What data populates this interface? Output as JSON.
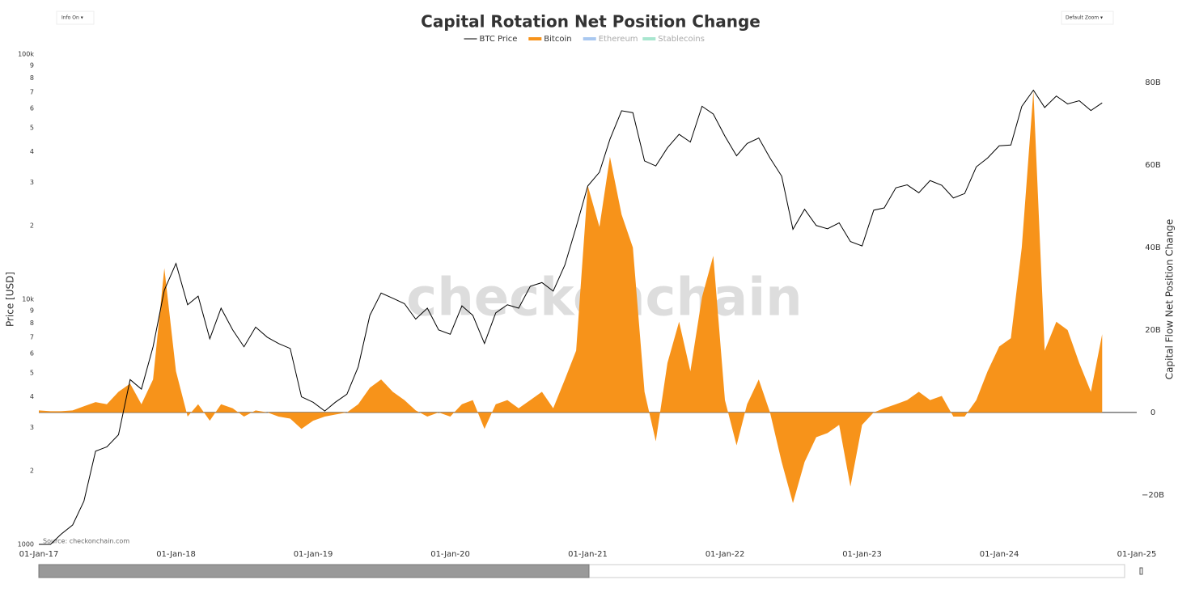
{
  "ui": {
    "info_toggle": "Info On ▾",
    "zoom_menu": "Default Zoom ▾",
    "watermark": "checkonchain",
    "source": "Source: checkonchain.com"
  },
  "chart_data": {
    "type": "dual_axis_area_line",
    "title": "Capital Rotation Net Position Change",
    "ylabel": "Price [USD]",
    "y2label": "Capital Flow Net Position Change",
    "log_y": true,
    "zeroline": true,
    "xlim": [
      "2017-01-01",
      "2025-01-01"
    ],
    "xticks": [
      {
        "value": "2017-01-01",
        "label": "01-Jan-17"
      },
      {
        "value": "2018-01-01",
        "label": "01-Jan-18"
      },
      {
        "value": "2019-01-01",
        "label": "01-Jan-19"
      },
      {
        "value": "2020-01-01",
        "label": "01-Jan-20"
      },
      {
        "value": "2021-01-01",
        "label": "01-Jan-21"
      },
      {
        "value": "2022-01-01",
        "label": "01-Jan-22"
      },
      {
        "value": "2023-01-01",
        "label": "01-Jan-23"
      },
      {
        "value": "2024-01-01",
        "label": "01-Jan-24"
      },
      {
        "value": "2025-01-01",
        "label": "01-Jan-25"
      }
    ],
    "ylim": [
      1000,
      100000
    ],
    "yticks": [
      1000,
      {
        "value": 2000,
        "label": "2"
      },
      {
        "value": 3000,
        "label": "3"
      },
      {
        "value": 4000,
        "label": "4"
      },
      {
        "value": 5000,
        "label": "5"
      },
      {
        "value": 6000,
        "label": "6"
      },
      {
        "value": 7000,
        "label": "7"
      },
      {
        "value": 8000,
        "label": "8"
      },
      {
        "value": 9000,
        "label": "9"
      },
      {
        "value": 10000,
        "label": "10k"
      },
      {
        "value": 20000,
        "label": "2"
      },
      {
        "value": 30000,
        "label": "3"
      },
      {
        "value": 40000,
        "label": "4"
      },
      {
        "value": 50000,
        "label": "5"
      },
      {
        "value": 60000,
        "label": "6"
      },
      {
        "value": 70000,
        "label": "7"
      },
      {
        "value": 80000,
        "label": "8"
      },
      {
        "value": 90000,
        "label": "9"
      },
      {
        "value": 100000,
        "label": "100k"
      }
    ],
    "y2lim": [
      -32000000000,
      86900000000
    ],
    "y2ticks": [
      {
        "value": -20000000000,
        "label": "−20B"
      },
      0,
      {
        "value": 20000000000,
        "label": "20B"
      },
      {
        "value": 40000000000,
        "label": "40B"
      },
      {
        "value": 60000000000,
        "label": "60B"
      },
      {
        "value": 80000000000,
        "label": "80B"
      }
    ],
    "x": [
      "2017-01-01",
      "2017-02-01",
      "2017-03-01",
      "2017-04-01",
      "2017-05-01",
      "2017-06-01",
      "2017-07-01",
      "2017-08-01",
      "2017-09-01",
      "2017-10-01",
      "2017-11-01",
      "2017-12-01",
      "2018-01-01",
      "2018-02-01",
      "2018-03-01",
      "2018-04-01",
      "2018-05-01",
      "2018-06-01",
      "2018-07-01",
      "2018-08-01",
      "2018-09-01",
      "2018-10-01",
      "2018-11-01",
      "2018-12-01",
      "2019-01-01",
      "2019-02-01",
      "2019-03-01",
      "2019-04-01",
      "2019-05-01",
      "2019-06-01",
      "2019-07-01",
      "2019-08-01",
      "2019-09-01",
      "2019-10-01",
      "2019-11-01",
      "2019-12-01",
      "2020-01-01",
      "2020-02-01",
      "2020-03-01",
      "2020-04-01",
      "2020-05-01",
      "2020-06-01",
      "2020-07-01",
      "2020-08-01",
      "2020-09-01",
      "2020-10-01",
      "2020-11-01",
      "2020-12-01",
      "2021-01-01",
      "2021-02-01",
      "2021-03-01",
      "2021-04-01",
      "2021-05-01",
      "2021-06-01",
      "2021-07-01",
      "2021-08-01",
      "2021-09-01",
      "2021-10-01",
      "2021-11-01",
      "2021-12-01",
      "2022-01-01",
      "2022-02-01",
      "2022-03-01",
      "2022-04-01",
      "2022-05-01",
      "2022-06-01",
      "2022-07-01",
      "2022-08-01",
      "2022-09-01",
      "2022-10-01",
      "2022-11-01",
      "2022-12-01",
      "2023-01-01",
      "2023-02-01",
      "2023-03-01",
      "2023-04-01",
      "2023-05-01",
      "2023-06-01",
      "2023-07-01",
      "2023-08-01",
      "2023-09-01",
      "2023-10-01",
      "2023-11-01",
      "2023-12-01",
      "2024-01-01",
      "2024-02-01",
      "2024-03-01",
      "2024-04-01",
      "2024-05-01",
      "2024-06-01",
      "2024-07-01",
      "2024-08-01",
      "2024-09-01",
      "2024-10-01"
    ],
    "series": [
      {
        "name": "BTC Price",
        "color": "#000000",
        "kind": "line",
        "axis": "y",
        "values": [
          1000,
          1000,
          1100,
          1200,
          1500,
          2400,
          2500,
          2800,
          4700,
          4300,
          6400,
          10900,
          14000,
          9500,
          10300,
          6900,
          9200,
          7500,
          6400,
          7700,
          7000,
          6600,
          6300,
          4000,
          3800,
          3500,
          3800,
          4100,
          5300,
          8600,
          10600,
          10100,
          9600,
          8300,
          9200,
          7500,
          7200,
          9400,
          8600,
          6600,
          8800,
          9500,
          9200,
          11300,
          11700,
          10800,
          13800,
          19700,
          29000,
          33000,
          45000,
          58800,
          57700,
          36700,
          35000,
          41500,
          47100,
          43800,
          61300,
          57000,
          46300,
          38500,
          43200,
          45500,
          37700,
          31800,
          19300,
          23300,
          20000,
          19400,
          20500,
          17200,
          16500,
          23100,
          23600,
          28500,
          29300,
          27200,
          30500,
          29200,
          25900,
          27000,
          34700,
          37700,
          42300,
          42600,
          61200,
          71300,
          60600,
          67500,
          62700,
          64600,
          58900,
          63300
        ]
      },
      {
        "name": "Bitcoin",
        "color": "#f7931a",
        "kind": "area",
        "axis": "y2",
        "values": [
          500000000.0,
          300000000.0,
          300000000.0,
          500000000.0,
          1500000000.0,
          2500000000.0,
          2000000000.0,
          5000000000.0,
          7000000000.0,
          2000000000.0,
          8000000000.0,
          35000000000.0,
          10000000000.0,
          -1000000000.0,
          2000000000.0,
          -2000000000.0,
          2000000000.0,
          1000000000.0,
          -1000000000.0,
          500000000.0,
          0,
          -1000000000.0,
          -1500000000.0,
          -4000000000.0,
          -2000000000.0,
          -1000000000.0,
          -500000000.0,
          0,
          2000000000.0,
          6000000000.0,
          8000000000.0,
          5000000000.0,
          3000000000.0,
          500000000.0,
          -1000000000.0,
          0,
          -1000000000.0,
          2000000000.0,
          3000000000.0,
          -4000000000.0,
          2000000000.0,
          3000000000.0,
          1000000000.0,
          3000000000.0,
          5000000000.0,
          1000000000.0,
          8000000000.0,
          15000000000.0,
          55000000000.0,
          45000000000.0,
          62000000000.0,
          48000000000.0,
          40000000000.0,
          5000000000.0,
          -7000000000.0,
          12000000000.0,
          22000000000.0,
          10000000000.0,
          28000000000.0,
          38000000000.0,
          3000000000.0,
          -8000000000.0,
          2000000000.0,
          8000000000.0,
          0,
          -12000000000.0,
          -22000000000.0,
          -12000000000.0,
          -6000000000.0,
          -5000000000.0,
          -3000000000.0,
          -18000000000.0,
          -3000000000.0,
          0,
          1000000000.0,
          2000000000.0,
          3000000000.0,
          5000000000.0,
          3000000000.0,
          4000000000.0,
          -1000000000.0,
          -1000000000.0,
          3000000000.0,
          10000000000.0,
          16000000000.0,
          18000000000.0,
          40000000000.0,
          78000000000.0,
          15000000000.0,
          22000000000.0,
          20000000000.0,
          12000000000.0,
          5000000000.0,
          19000000000.0
        ]
      },
      {
        "name": "Ethereum",
        "color": "#a9c8f0",
        "kind": "area",
        "axis": "y2",
        "visible": false
      },
      {
        "name": "Stablecoins",
        "color": "#a8e6cf",
        "kind": "area",
        "axis": "y2",
        "visible": false
      }
    ]
  }
}
